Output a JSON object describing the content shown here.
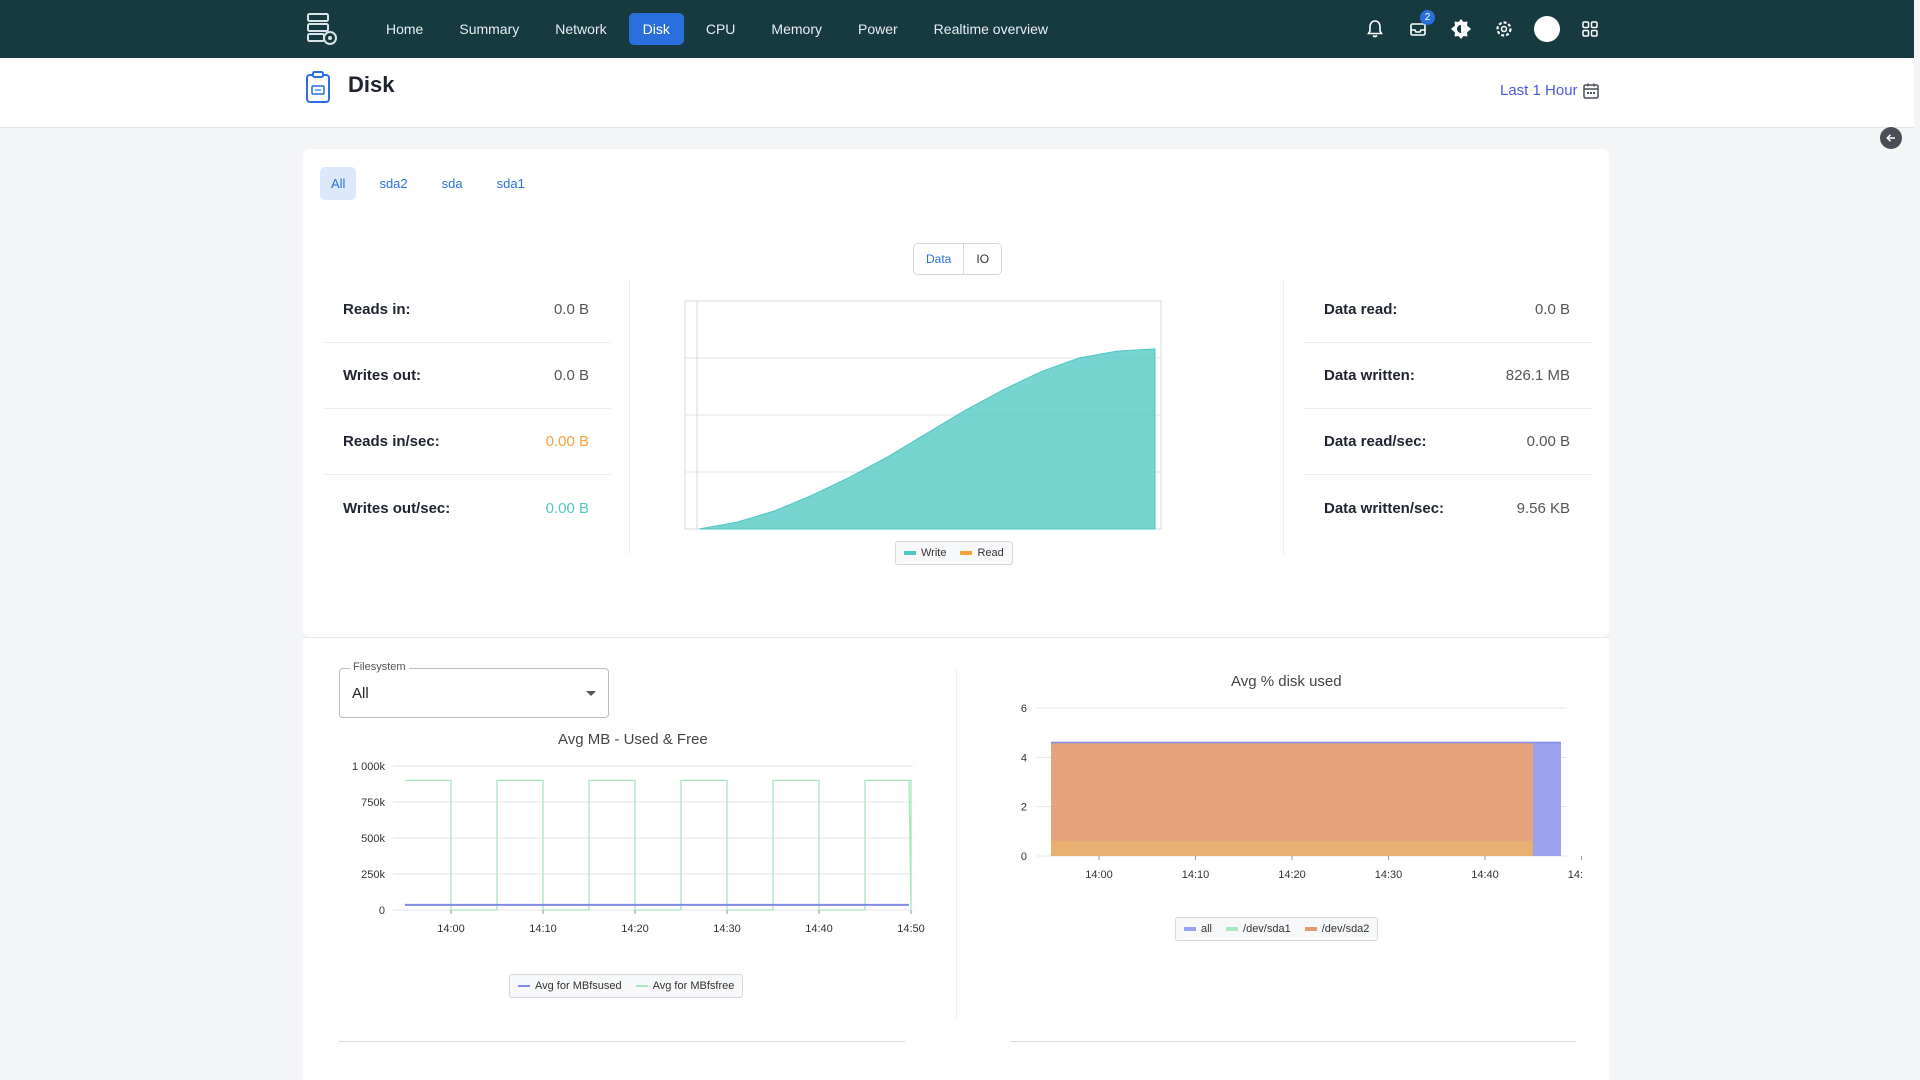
{
  "nav": {
    "items": [
      {
        "label": "Home",
        "active": false
      },
      {
        "label": "Summary",
        "active": false
      },
      {
        "label": "Network",
        "active": false
      },
      {
        "label": "Disk",
        "active": true
      },
      {
        "label": "CPU",
        "active": false
      },
      {
        "label": "Memory",
        "active": false
      },
      {
        "label": "Power",
        "active": false
      },
      {
        "label": "Realtime overview",
        "active": false
      }
    ],
    "inbox_badge": "2",
    "icons": [
      "bell-icon",
      "inbox-icon",
      "theme-icon",
      "gear-icon",
      "avatar",
      "apps-grid-icon"
    ]
  },
  "header": {
    "title": "Disk",
    "time_range": "Last 1 Hour"
  },
  "disk_tabs": [
    {
      "label": "All",
      "active": true
    },
    {
      "label": "sda2",
      "active": false
    },
    {
      "label": "sda",
      "active": false
    },
    {
      "label": "sda1",
      "active": false
    }
  ],
  "view_toggle": {
    "data_label": "Data",
    "io_label": "IO",
    "selected": "Data"
  },
  "left_stats": [
    {
      "label": "Reads in:",
      "value": "0.0 B",
      "color": ""
    },
    {
      "label": "Writes out:",
      "value": "0.0 B",
      "color": ""
    },
    {
      "label": "Reads in/sec:",
      "value": "0.00 B",
      "color": "#f5a23a"
    },
    {
      "label": "Writes out/sec:",
      "value": "0.00 B",
      "color": "#4fc8c4"
    }
  ],
  "right_stats": [
    {
      "label": "Data read:",
      "value": "0.0 B"
    },
    {
      "label": "Data written:",
      "value": "826.1 MB"
    },
    {
      "label": "Data read/sec:",
      "value": "0.00 B"
    },
    {
      "label": "Data written/sec:",
      "value": "9.56 KB"
    }
  ],
  "colors": {
    "nav_bg": "#163a40",
    "accent": "#2a6fdb",
    "write": "#4fc8c4",
    "read": "#f5a23a",
    "all": "#9aa2ef",
    "sda1": "#a8e6bf",
    "sda2": "#e39a6e"
  },
  "filesystem": {
    "label": "Filesystem",
    "value": "All"
  },
  "chart_data": [
    {
      "type": "area",
      "title": "",
      "x": [
        0,
        1,
        2,
        3,
        4,
        5,
        6,
        7,
        8,
        9,
        10,
        11,
        12
      ],
      "series": [
        {
          "name": "Write",
          "values": [
            0,
            3,
            8,
            15,
            23,
            32,
            42,
            52,
            61,
            69,
            75,
            78,
            79
          ]
        },
        {
          "name": "Read",
          "values": [
            0,
            0,
            0,
            0,
            0,
            0,
            0,
            0,
            0,
            0,
            0,
            0,
            0
          ]
        }
      ],
      "ylim": [
        0,
        100
      ],
      "legend": "bottom"
    },
    {
      "type": "line",
      "title": "Avg MB - Used & Free",
      "x_ticks": [
        "14:00",
        "14:10",
        "14:20",
        "14:30",
        "14:40",
        "14:50"
      ],
      "y_ticks": [
        "0",
        "250k",
        "500k",
        "750k",
        "1 000k"
      ],
      "ylim": [
        0,
        1000000
      ],
      "series": [
        {
          "name": "Avg for MBfsused",
          "values": [
            36000,
            36000,
            36000,
            36000,
            36000,
            36000,
            36000,
            36000,
            36000,
            36000,
            36000,
            36000
          ]
        },
        {
          "name": "Avg for MBfsfree",
          "values": [
            900000,
            0,
            900000,
            0,
            900000,
            0,
            900000,
            0,
            900000,
            0,
            900000,
            0
          ]
        }
      ],
      "legend": "bottom"
    },
    {
      "type": "area",
      "title": "Avg % disk used",
      "x_ticks": [
        "14:00",
        "14:10",
        "14:20",
        "14:30",
        "14:40",
        "14:50"
      ],
      "y_ticks": [
        "0",
        "2",
        "4",
        "6"
      ],
      "ylim": [
        0,
        6
      ],
      "series": [
        {
          "name": "all",
          "values": [
            4.6,
            4.6
          ]
        },
        {
          "name": "/dev/sda1",
          "values": [
            0.6,
            0.6
          ]
        },
        {
          "name": "/dev/sda2",
          "values": [
            4.6,
            4.6
          ]
        }
      ],
      "legend": "bottom"
    }
  ]
}
